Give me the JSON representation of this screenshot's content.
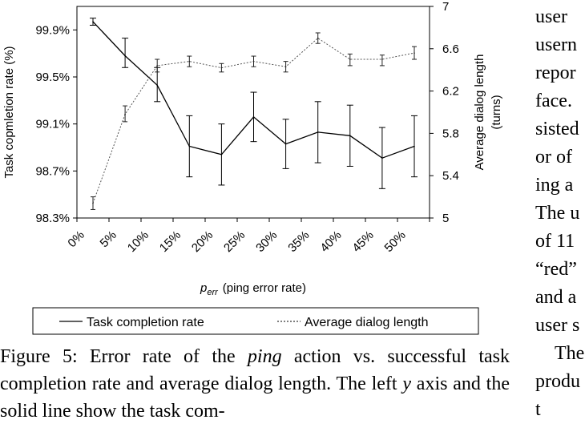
{
  "chart_data": {
    "type": "line",
    "categories": [
      "0%",
      "5%",
      "10%",
      "15%",
      "20%",
      "25%",
      "30%",
      "35%",
      "40%",
      "45%",
      "50%"
    ],
    "xlabel_main": "p",
    "xlabel_sub": "err",
    "xlabel_rest": "(ping error rate)",
    "ylabel_left": "Task copmletion rate (%)",
    "ylabel_right_line1": "Average dialog length",
    "ylabel_right_line2": "(turns)",
    "left_ylim": [
      98.3,
      100.1
    ],
    "left_ticks": [
      "98.3%",
      "98.7%",
      "99.1%",
      "99.5%",
      "99.9%"
    ],
    "left_tick_values": [
      98.3,
      98.7,
      99.1,
      99.5,
      99.9
    ],
    "right_ylim": [
      5,
      7
    ],
    "right_ticks": [
      "5",
      "5.4",
      "5.8",
      "6.2",
      "6.6",
      "7"
    ],
    "right_tick_values": [
      5,
      5.4,
      5.8,
      6.2,
      6.6,
      7
    ],
    "grid": false,
    "legend_position": "bottom",
    "series": [
      {
        "name": "Task completion rate",
        "axis": "left",
        "style": "solid",
        "values": [
          99.97,
          99.68,
          99.43,
          98.91,
          98.84,
          99.16,
          98.93,
          99.03,
          99.0,
          98.81,
          98.91
        ],
        "error_low": [
          99.94,
          99.58,
          99.29,
          98.65,
          98.58,
          98.95,
          98.72,
          98.77,
          98.74,
          98.55,
          98.65
        ],
        "error_high": [
          100.0,
          99.83,
          99.58,
          99.17,
          99.1,
          99.37,
          99.14,
          99.29,
          99.26,
          99.07,
          99.17
        ]
      },
      {
        "name": "Average dialog length",
        "axis": "right",
        "style": "dashed",
        "values": [
          5.14,
          5.98,
          6.44,
          6.48,
          6.42,
          6.48,
          6.43,
          6.7,
          6.5,
          6.5,
          6.56
        ],
        "error_low": [
          5.08,
          5.91,
          6.38,
          6.43,
          6.38,
          6.43,
          6.38,
          6.65,
          6.44,
          6.44,
          6.5
        ],
        "error_high": [
          5.2,
          6.06,
          6.5,
          6.53,
          6.46,
          6.53,
          6.48,
          6.75,
          6.55,
          6.54,
          6.62
        ]
      }
    ]
  },
  "caption": {
    "part1": "Figure 5: Error rate of the ",
    "italic_word": "ping",
    "part2": " action vs. successful task completion rate and average dialog length. The left ",
    "italic_var": "y",
    "part3": " axis and the solid line show the task com-"
  },
  "right_column": {
    "lines": [
      "user",
      "usern",
      "repor",
      "face.",
      "sisted",
      "or of",
      "ing a",
      "The u",
      "of 11",
      "“red”",
      "and a",
      "user s",
      "The",
      "produ",
      "t"
    ]
  }
}
